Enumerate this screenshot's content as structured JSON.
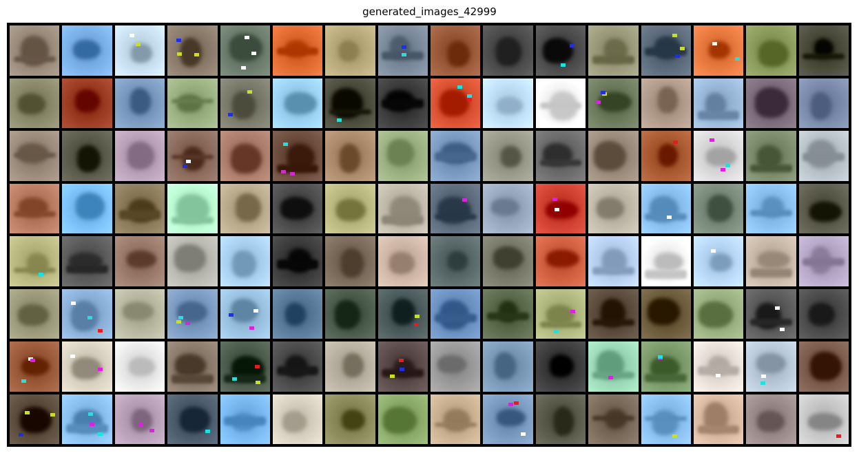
{
  "figure": {
    "title": "generated_images_42999",
    "grid": {
      "rows": 8,
      "cols": 16
    }
  },
  "palette": {
    "background": "#ffffff",
    "grid_border": "#000000"
  },
  "tiles": [
    [
      "#8a7a6a",
      "#6aa0d8",
      "#b8cfe0",
      "#7a6a5a",
      "#5a6a5a",
      "#d05a20",
      "#a89a6a",
      "#6a7a8a",
      "#8a4a2a",
      "#3a3a3a",
      "#3a3a3a",
      "#8a8a6a",
      "#4a5a6a",
      "#d86a30",
      "#7a8a4a",
      "#3a3a2a"
    ],
    [
      "#7a7a5a",
      "#8a2a10",
      "#6a8ab0",
      "#8aa070",
      "#6a6a5a",
      "#8ac0e0",
      "#3a3a2a",
      "#2a2a2a",
      "#c84020",
      "#b0d0e8",
      "#e8e8e8",
      "#5a6a4a",
      "#a08a7a",
      "#8aa8c8",
      "#6a5a6a",
      "#6a7a9a"
    ],
    [
      "#8a7a6a",
      "#4a4a3a",
      "#a890a8",
      "#7a5a4a",
      "#9a6a5a",
      "#5a3a2a",
      "#9a7a5a",
      "#8aa070",
      "#6a8ab0",
      "#8a8a7a",
      "#5a5a5a",
      "#8a7a6a",
      "#9a4a20",
      "#c8c8c8",
      "#6a7a5a",
      "#a8b0b8"
    ],
    [
      "#a86a50",
      "#6ab0e8",
      "#7a6a4a",
      "#a8e8c0",
      "#a89a7a",
      "#3a3a3a",
      "#a8a870",
      "#b0a898",
      "#4a5a6a",
      "#8a9ab0",
      "#c03020",
      "#b0a898",
      "#7ab0e0",
      "#6a7a6a",
      "#7ab0e0",
      "#4a4a3a"
    ],
    [
      "#a8a870",
      "#4a4a4a",
      "#8a6a5a",
      "#a8a8a0",
      "#9ac0e0",
      "#2a2a2a",
      "#6a5a4a",
      "#c0a898",
      "#4a5a5a",
      "#6a6a5a",
      "#c05030",
      "#a8c0e0",
      "#e8e8e8",
      "#a8c8e8",
      "#b8a898",
      "#a898b8"
    ],
    [
      "#8a8a6a",
      "#7aa0c8",
      "#a8a890",
      "#6a8ab0",
      "#8ab0d0",
      "#4a6a8a",
      "#3a4a3a",
      "#3a4a4a",
      "#5a80b0",
      "#4a5a3a",
      "#a0a870",
      "#4a3a2a",
      "#5a4a2a",
      "#8aa070",
      "#4a4a4a",
      "#3a3a3a"
    ],
    [
      "#8a4a2a",
      "#c8c0b0",
      "#d8d8d8",
      "#7a6a5a",
      "#3a4a3a",
      "#3a3a3a",
      "#a8a090",
      "#4a3a3a",
      "#8a8a8a",
      "#6a8aa8",
      "#2a2a2a",
      "#8ac8a8",
      "#6a8a5a",
      "#d8d0c8",
      "#a8b8c8",
      "#6a4a3a"
    ],
    [
      "#4a3a2a",
      "#7ab0e0",
      "#a890a8",
      "#3a4a5a",
      "#6aa8e0",
      "#c8c0b0",
      "#7a7a4a",
      "#7a9a5a",
      "#b8a080",
      "#6a8ab0",
      "#4a4a3a",
      "#6a5a4a",
      "#7ab0e0",
      "#c8a890",
      "#8a7a7a",
      "#b8b8b8"
    ]
  ]
}
